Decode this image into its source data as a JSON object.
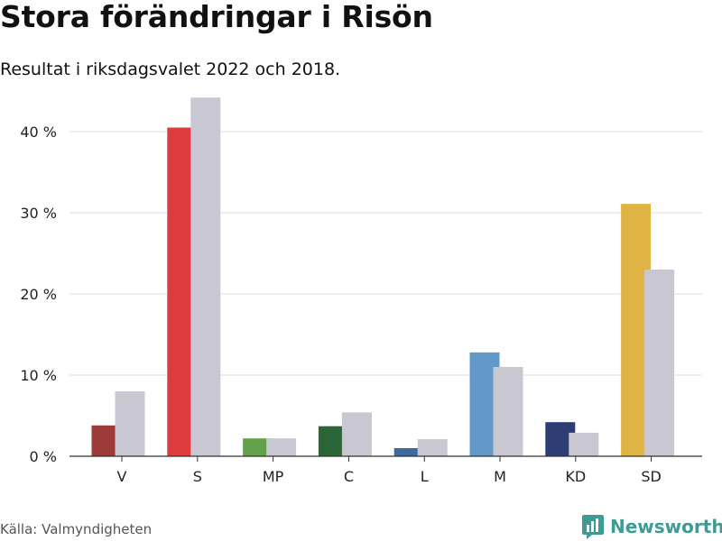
{
  "title": "Stora förändringar i Risön",
  "subtitle": "Resultat i riksdagsvalet 2022 och 2018.",
  "source": "Källa: Valmyndigheten",
  "brand": {
    "name": "Newsworthy",
    "logo_icon": "bar-chart-logo-icon",
    "color": "#3e9b94"
  },
  "chart_data": {
    "type": "bar",
    "title": "Stora förändringar i Risön",
    "subtitle": "Resultat i riksdagsvalet 2022 och 2018.",
    "xlabel": "",
    "ylabel": "",
    "ylim": [
      0,
      46
    ],
    "yticks": [
      0,
      10,
      20,
      30,
      40
    ],
    "ytick_suffix": " %",
    "grid": true,
    "legend": "none",
    "categories": [
      "V",
      "S",
      "MP",
      "C",
      "L",
      "M",
      "KD",
      "SD"
    ],
    "series": [
      {
        "name": "2022",
        "values": [
          3.8,
          40.5,
          2.2,
          3.7,
          1.0,
          12.8,
          4.2,
          31.1
        ],
        "colors": [
          "#9b3a38",
          "#de3b3f",
          "#63a24b",
          "#2a6638",
          "#3d6a9e",
          "#6299c8",
          "#2e3d74",
          "#e0b444"
        ]
      },
      {
        "name": "2018",
        "values": [
          8.0,
          44.2,
          2.2,
          5.4,
          2.1,
          11.0,
          2.9,
          23.0
        ],
        "color": "#c8c7d2"
      }
    ]
  }
}
